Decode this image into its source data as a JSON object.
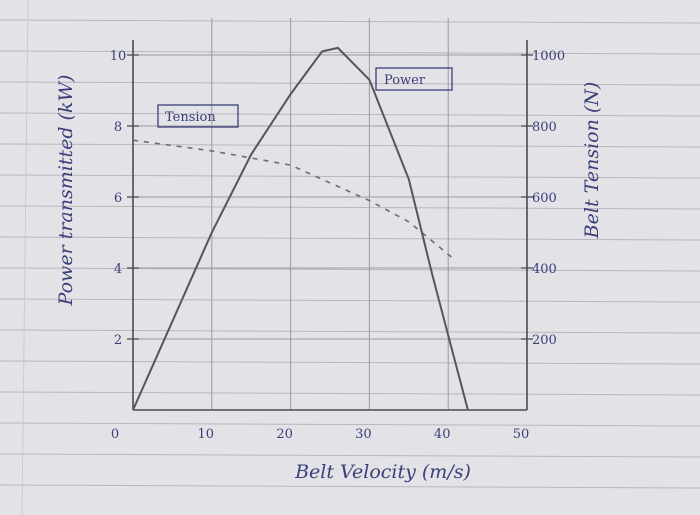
{
  "chart_data": {
    "type": "line",
    "xlabel": "Belt Velocity (m/s)",
    "ylabel_left": "Power transmitted (kW)",
    "ylabel_right": "Belt Tension (N)",
    "xlim": [
      0,
      50
    ],
    "ylim_left": [
      0,
      10
    ],
    "ylim_right": [
      0,
      1000
    ],
    "x_ticks": [
      "0",
      "10",
      "20",
      "30",
      "40",
      "50"
    ],
    "y_ticks_left": [
      "2",
      "4",
      "6",
      "8",
      "10"
    ],
    "y_ticks_right": [
      "200",
      "400",
      "600",
      "800",
      "1000"
    ],
    "grid": true,
    "series": [
      {
        "name": "Power",
        "axis": "left",
        "style": "solid",
        "color": "#555555",
        "x": [
          0,
          5,
          10,
          15,
          20,
          24,
          26,
          30,
          35,
          38,
          40,
          42.5
        ],
        "y": [
          0,
          2.5,
          5.0,
          7.2,
          8.9,
          10.1,
          10.2,
          9.3,
          6.5,
          3.8,
          2.1,
          0
        ]
      },
      {
        "name": "Tension",
        "axis": "right",
        "style": "dashed",
        "color": "#777777",
        "x": [
          0,
          10,
          20,
          30,
          35,
          41
        ],
        "y": [
          760,
          730,
          690,
          590,
          530,
          420
        ]
      }
    ],
    "legend": [
      {
        "label": "Tension",
        "position": "top-left"
      },
      {
        "label": "Power",
        "position": "top-right"
      }
    ]
  }
}
